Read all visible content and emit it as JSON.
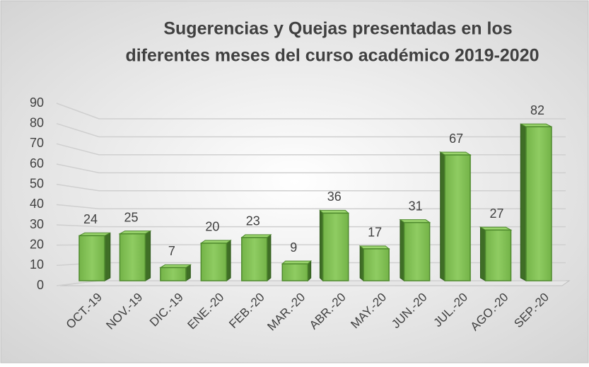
{
  "chart_data": {
    "type": "bar3d",
    "title": [
      "Sugerencias y Quejas presentadas en los",
      "diferentes meses del curso académico 2019-2020"
    ],
    "categories": [
      "OCT.-19",
      "NOV.-19",
      "DIC.-19",
      "ENE.-20",
      "FEB.-20",
      "MAR.-20",
      "ABR.-20",
      "MAY.-20",
      "JUN.-20",
      "JUL.-20",
      "AGO.-20",
      "SEP.-20"
    ],
    "values": [
      24,
      25,
      7,
      20,
      23,
      9,
      36,
      17,
      31,
      67,
      27,
      82
    ],
    "color": "#7dbb52",
    "ylim": [
      0,
      90
    ],
    "yticks": [
      0,
      10,
      20,
      30,
      40,
      50,
      60,
      70,
      80,
      90
    ],
    "grid": true
  }
}
